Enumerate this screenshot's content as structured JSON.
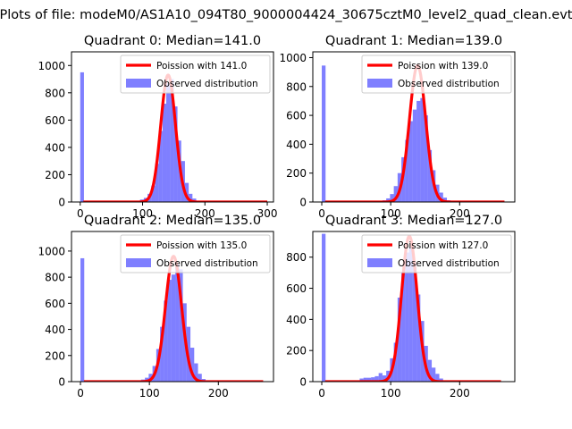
{
  "suptitle": "Plots of file: modeM0/AS1A10_094T80_9000004424_30675cztM0_level2_quad_clean.evt",
  "colors": {
    "histogram": "#0000ff",
    "model": "#ff0000",
    "axes": "#000000",
    "legend_border": "#cccccc"
  },
  "chart_data": [
    {
      "type": "histogram",
      "title": "Quadrant 0: Median=141.0",
      "xlim": [
        -14,
        310
      ],
      "ylim": [
        0,
        1100
      ],
      "xticks": [
        0,
        100,
        200,
        300
      ],
      "yticks": [
        0,
        200,
        400,
        600,
        800,
        1000
      ],
      "bin_width": 6,
      "bins": [
        [
          0,
          950
        ],
        [
          6,
          3
        ],
        [
          12,
          3
        ],
        [
          18,
          3
        ],
        [
          24,
          3
        ],
        [
          30,
          3
        ],
        [
          36,
          3
        ],
        [
          42,
          3
        ],
        [
          48,
          3
        ],
        [
          54,
          3
        ],
        [
          60,
          3
        ],
        [
          66,
          3
        ],
        [
          72,
          3
        ],
        [
          78,
          3
        ],
        [
          84,
          5
        ],
        [
          90,
          10
        ],
        [
          96,
          18
        ],
        [
          102,
          30
        ],
        [
          108,
          60
        ],
        [
          114,
          120
        ],
        [
          120,
          280
        ],
        [
          126,
          520
        ],
        [
          132,
          720
        ],
        [
          138,
          870
        ],
        [
          144,
          900
        ],
        [
          150,
          700
        ],
        [
          156,
          450
        ],
        [
          162,
          300
        ],
        [
          168,
          140
        ],
        [
          174,
          60
        ],
        [
          180,
          25
        ],
        [
          186,
          10
        ],
        [
          192,
          4
        ],
        [
          198,
          3
        ],
        [
          204,
          3
        ],
        [
          210,
          3
        ],
        [
          216,
          3
        ],
        [
          222,
          3
        ],
        [
          228,
          3
        ],
        [
          234,
          3
        ],
        [
          240,
          3
        ],
        [
          246,
          3
        ],
        [
          252,
          3
        ],
        [
          258,
          3
        ],
        [
          264,
          3
        ],
        [
          270,
          3
        ],
        [
          276,
          3
        ],
        [
          282,
          3
        ],
        [
          288,
          3
        ]
      ],
      "model": {
        "type": "poisson",
        "mean": 141.0,
        "peak": 930,
        "x_range": [
          5,
          300
        ]
      },
      "legend": [
        "Poission with 141.0",
        "Observed distribution"
      ]
    },
    {
      "type": "histogram",
      "title": "Quadrant 1: Median=139.0",
      "xlim": [
        -13,
        280
      ],
      "ylim": [
        0,
        1040
      ],
      "xticks": [
        0,
        100,
        200
      ],
      "yticks": [
        0,
        200,
        400,
        600,
        800,
        1000
      ],
      "bin_width": 5.5,
      "bins": [
        [
          0,
          945
        ],
        [
          5.5,
          3
        ],
        [
          11,
          3
        ],
        [
          16.5,
          3
        ],
        [
          22,
          3
        ],
        [
          27.5,
          3
        ],
        [
          33,
          3
        ],
        [
          38.5,
          3
        ],
        [
          44,
          3
        ],
        [
          49.5,
          3
        ],
        [
          55,
          3
        ],
        [
          60.5,
          3
        ],
        [
          66,
          3
        ],
        [
          71.5,
          3
        ],
        [
          77,
          4
        ],
        [
          82.5,
          6
        ],
        [
          88,
          12
        ],
        [
          93.5,
          25
        ],
        [
          99,
          55
        ],
        [
          104.5,
          110
        ],
        [
          110,
          200
        ],
        [
          115.5,
          310
        ],
        [
          121,
          430
        ],
        [
          126.5,
          560
        ],
        [
          132,
          640
        ],
        [
          137.5,
          700
        ],
        [
          143,
          720
        ],
        [
          148.5,
          600
        ],
        [
          154,
          360
        ],
        [
          159.5,
          220
        ],
        [
          165,
          120
        ],
        [
          170.5,
          65
        ],
        [
          176,
          30
        ],
        [
          181.5,
          12
        ],
        [
          187,
          6
        ],
        [
          192.5,
          3
        ],
        [
          198,
          3
        ],
        [
          203.5,
          3
        ],
        [
          209,
          3
        ],
        [
          214.5,
          3
        ],
        [
          220,
          3
        ],
        [
          225.5,
          3
        ],
        [
          231,
          3
        ],
        [
          236.5,
          3
        ],
        [
          242,
          3
        ],
        [
          247.5,
          3
        ],
        [
          253,
          3
        ],
        [
          258.5,
          3
        ]
      ],
      "model": {
        "type": "poisson",
        "mean": 139.0,
        "peak": 945,
        "x_range": [
          5,
          265
        ]
      },
      "legend": [
        "Poission with 139.0",
        "Observed distribution"
      ]
    },
    {
      "type": "histogram",
      "title": "Quadrant 2: Median=135.0",
      "xlim": [
        -13,
        280
      ],
      "ylim": [
        0,
        1150
      ],
      "xticks": [
        0,
        100,
        200
      ],
      "yticks": [
        0,
        200,
        400,
        600,
        800,
        1000
      ],
      "bin_width": 5.5,
      "bins": [
        [
          0,
          945
        ],
        [
          5.5,
          3
        ],
        [
          11,
          3
        ],
        [
          16.5,
          3
        ],
        [
          22,
          3
        ],
        [
          27.5,
          3
        ],
        [
          33,
          3
        ],
        [
          38.5,
          3
        ],
        [
          44,
          3
        ],
        [
          49.5,
          3
        ],
        [
          55,
          3
        ],
        [
          60.5,
          3
        ],
        [
          66,
          3
        ],
        [
          71.5,
          3
        ],
        [
          77,
          6
        ],
        [
          82.5,
          10
        ],
        [
          88,
          16
        ],
        [
          93.5,
          30
        ],
        [
          99,
          60
        ],
        [
          104.5,
          120
        ],
        [
          110,
          250
        ],
        [
          115.5,
          420
        ],
        [
          121,
          620
        ],
        [
          126.5,
          780
        ],
        [
          132,
          820
        ],
        [
          137.5,
          900
        ],
        [
          143,
          860
        ],
        [
          148.5,
          600
        ],
        [
          154,
          420
        ],
        [
          159.5,
          260
        ],
        [
          165,
          140
        ],
        [
          170.5,
          60
        ],
        [
          176,
          20
        ],
        [
          181.5,
          8
        ],
        [
          187,
          3
        ],
        [
          192.5,
          3
        ],
        [
          198,
          3
        ],
        [
          203.5,
          3
        ],
        [
          209,
          3
        ],
        [
          214.5,
          3
        ],
        [
          220,
          3
        ],
        [
          225.5,
          3
        ],
        [
          231,
          3
        ],
        [
          236.5,
          3
        ],
        [
          242,
          3
        ],
        [
          247.5,
          3
        ],
        [
          253,
          3
        ],
        [
          258.5,
          3
        ]
      ],
      "model": {
        "type": "poisson",
        "mean": 135.0,
        "peak": 960,
        "x_range": [
          5,
          265
        ]
      },
      "legend": [
        "Poission with 135.0",
        "Observed distribution"
      ]
    },
    {
      "type": "histogram",
      "title": "Quadrant 3: Median=127.0",
      "xlim": [
        -13,
        280
      ],
      "ylim": [
        0,
        965
      ],
      "xticks": [
        0,
        100,
        200
      ],
      "yticks": [
        0,
        200,
        400,
        600,
        800
      ],
      "bin_width": 5.5,
      "bins": [
        [
          0,
          950
        ],
        [
          5.5,
          3
        ],
        [
          11,
          3
        ],
        [
          16.5,
          3
        ],
        [
          22,
          3
        ],
        [
          27.5,
          3
        ],
        [
          33,
          3
        ],
        [
          38.5,
          4
        ],
        [
          44,
          5
        ],
        [
          49.5,
          8
        ],
        [
          55,
          20
        ],
        [
          60.5,
          25
        ],
        [
          66,
          25
        ],
        [
          71.5,
          28
        ],
        [
          77,
          35
        ],
        [
          82.5,
          55
        ],
        [
          88,
          40
        ],
        [
          93.5,
          70
        ],
        [
          99,
          150
        ],
        [
          104.5,
          250
        ],
        [
          110,
          540
        ],
        [
          115.5,
          700
        ],
        [
          121,
          830
        ],
        [
          126.5,
          860
        ],
        [
          132,
          760
        ],
        [
          137.5,
          560
        ],
        [
          143,
          390
        ],
        [
          148.5,
          230
        ],
        [
          154,
          140
        ],
        [
          159.5,
          90
        ],
        [
          165,
          50
        ],
        [
          170.5,
          20
        ],
        [
          176,
          8
        ],
        [
          181.5,
          4
        ],
        [
          187,
          3
        ],
        [
          192.5,
          3
        ],
        [
          198,
          3
        ],
        [
          203.5,
          3
        ],
        [
          209,
          3
        ],
        [
          214.5,
          3
        ],
        [
          220,
          3
        ],
        [
          225.5,
          3
        ],
        [
          231,
          3
        ],
        [
          236.5,
          3
        ],
        [
          242,
          3
        ],
        [
          247.5,
          3
        ],
        [
          253,
          3
        ]
      ],
      "model": {
        "type": "poisson",
        "mean": 127.0,
        "peak": 935,
        "x_range": [
          5,
          260
        ]
      },
      "legend": [
        "Poission with 127.0",
        "Observed distribution"
      ]
    }
  ]
}
